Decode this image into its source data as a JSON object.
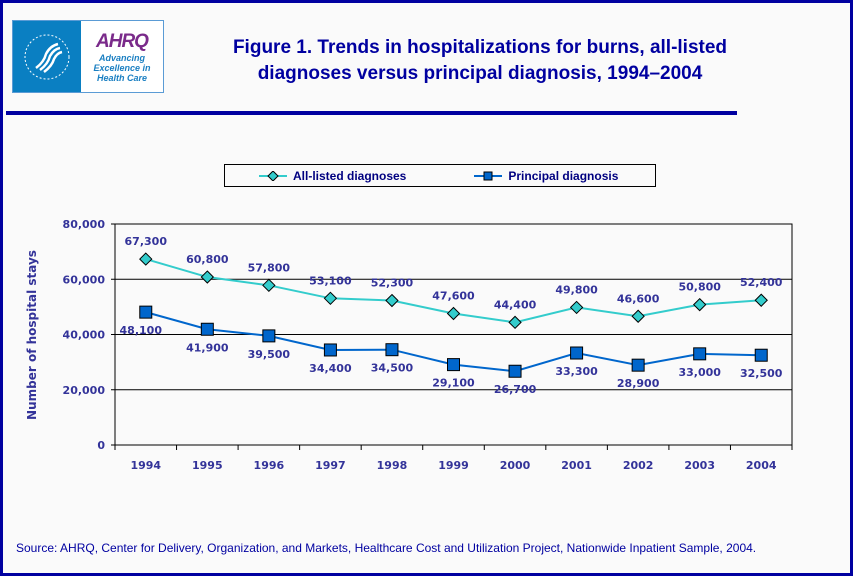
{
  "header": {
    "title_line1": "Figure 1. Trends in hospitalizations for burns, all-listed",
    "title_line2": "diagnoses versus principal diagnosis, 1994–2004",
    "logo_text": "AHRQ",
    "logo_tagline": [
      "Advancing",
      "Excellence in",
      "Health Care"
    ]
  },
  "colors": {
    "frame": "#0000a0",
    "all_listed": "#33cccc",
    "principal": "#0066cc",
    "text": "#333399"
  },
  "chart_data": {
    "type": "line",
    "title": "Figure 1. Trends in hospitalizations for burns, all-listed diagnoses versus principal diagnosis, 1994–2004",
    "xlabel": "",
    "ylabel": "Number of hospital stays",
    "ylim": [
      0,
      80000
    ],
    "yticks": [
      "0",
      "20,000",
      "40,000",
      "60,000",
      "80,000"
    ],
    "grid": true,
    "legend_position": "top",
    "categories": [
      "1994",
      "1995",
      "1996",
      "1997",
      "1998",
      "1999",
      "2000",
      "2001",
      "2002",
      "2003",
      "2004"
    ],
    "series": [
      {
        "name": "All-listed diagnoses",
        "marker": "diamond",
        "color": "#33cccc",
        "values": [
          67300,
          60800,
          57800,
          53100,
          52300,
          47600,
          44400,
          49800,
          46600,
          50800,
          52400
        ],
        "labels": [
          "67,300",
          "60,800",
          "57,800",
          "53,100",
          "52,300",
          "47,600",
          "44,400",
          "49,800",
          "46,600",
          "50,800",
          "52,400"
        ]
      },
      {
        "name": "Principal diagnosis",
        "marker": "square",
        "color": "#0066cc",
        "values": [
          48100,
          41900,
          39500,
          34400,
          34500,
          29100,
          26700,
          33300,
          28900,
          33000,
          32500
        ],
        "labels": [
          "48,100",
          "41,900",
          "39,500",
          "34,400",
          "34,500",
          "29,100",
          "26,700",
          "33,300",
          "28,900",
          "33,000",
          "32,500"
        ]
      }
    ]
  },
  "source": "Source: AHRQ, Center for Delivery, Organization, and Markets, Healthcare Cost and Utilization Project, Nationwide Inpatient Sample, 2004."
}
